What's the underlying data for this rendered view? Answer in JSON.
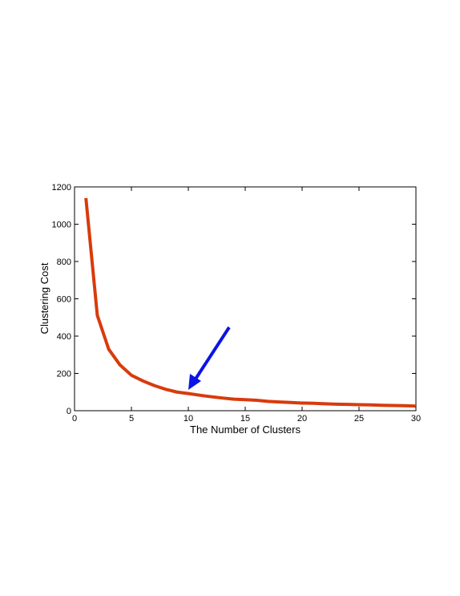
{
  "chart_data": {
    "type": "line",
    "xlabel": "The Number of Clusters",
    "ylabel": "Clustering Cost",
    "x": [
      1,
      2,
      3,
      4,
      5,
      6,
      7,
      8,
      9,
      10,
      11,
      12,
      13,
      14,
      15,
      16,
      17,
      18,
      19,
      20,
      21,
      22,
      23,
      24,
      25,
      26,
      27,
      28,
      29,
      30
    ],
    "values": [
      1140,
      512,
      330,
      245,
      190,
      160,
      135,
      115,
      100,
      92,
      83,
      75,
      68,
      62,
      59,
      56,
      50,
      47,
      44,
      41,
      40,
      37,
      35,
      34,
      32,
      31,
      29,
      28,
      27,
      25
    ],
    "color": "#d83b0c",
    "xlim": [
      0,
      30
    ],
    "xticks": [
      0,
      5,
      10,
      15,
      20,
      25,
      30
    ],
    "ylim": [
      0,
      1200
    ],
    "yticks": [
      0,
      200,
      400,
      600,
      800,
      1000,
      1200
    ],
    "grid": false
  }
}
